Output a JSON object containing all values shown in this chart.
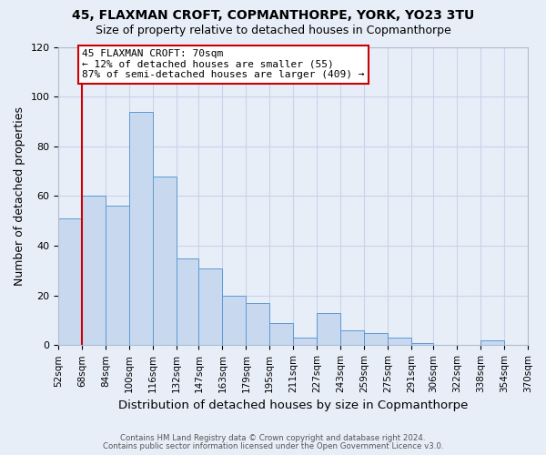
{
  "title1": "45, FLAXMAN CROFT, COPMANTHORPE, YORK, YO23 3TU",
  "title2": "Size of property relative to detached houses in Copmanthorpe",
  "xlabel": "Distribution of detached houses by size in Copmanthorpe",
  "ylabel": "Number of detached properties",
  "bar_edges": [
    52,
    68,
    84,
    100,
    116,
    132,
    147,
    163,
    179,
    195,
    211,
    227,
    243,
    259,
    275,
    291,
    306,
    322,
    338,
    354,
    370
  ],
  "bar_heights": [
    51,
    60,
    56,
    94,
    68,
    35,
    31,
    20,
    17,
    9,
    3,
    13,
    6,
    5,
    3,
    1,
    0,
    0,
    2,
    0
  ],
  "bar_color": "#c8d9ef",
  "bar_edge_color": "#5b9bd5",
  "ylim": [
    0,
    120
  ],
  "yticks": [
    0,
    20,
    40,
    60,
    80,
    100,
    120
  ],
  "property_line_x": 68,
  "ann_line1": "45 FLAXMAN CROFT: 70sqm",
  "ann_line2": "← 12% of detached houses are smaller (55)",
  "ann_line3": "87% of semi-detached houses are larger (409) →",
  "footer1": "Contains HM Land Registry data © Crown copyright and database right 2024.",
  "footer2": "Contains public sector information licensed under the Open Government Licence v3.0.",
  "tick_labels": [
    "52sqm",
    "68sqm",
    "84sqm",
    "100sqm",
    "116sqm",
    "132sqm",
    "147sqm",
    "163sqm",
    "179sqm",
    "195sqm",
    "211sqm",
    "227sqm",
    "243sqm",
    "259sqm",
    "275sqm",
    "291sqm",
    "306sqm",
    "322sqm",
    "338sqm",
    "354sqm",
    "370sqm"
  ],
  "grid_color": "#c8d4e8",
  "background_color": "#e8eef8",
  "ann_box_facecolor": "white",
  "ann_box_edgecolor": "#cc0000",
  "red_line_color": "#cc0000"
}
